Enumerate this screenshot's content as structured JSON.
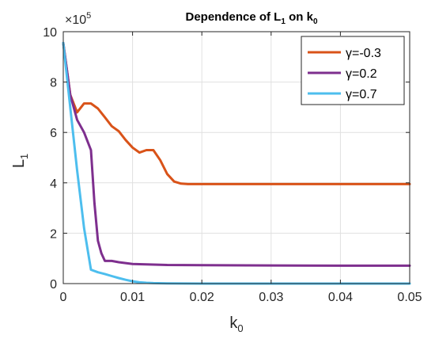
{
  "chart_data": {
    "type": "line",
    "title": "Dependence of L",
    "title_sub1": "1",
    "title_mid": " on k",
    "title_sub2": "0",
    "xlabel": "k",
    "xlabel_sub": "0",
    "ylabel": "L",
    "ylabel_sub": "1",
    "y_exponent_base": "×10",
    "y_exponent_power": "5",
    "xlim": [
      0,
      0.05
    ],
    "ylim": [
      0,
      10
    ],
    "xticks": [
      0,
      0.01,
      0.02,
      0.03,
      0.04,
      0.05
    ],
    "xtick_labels": [
      "0",
      "0.01",
      "0.02",
      "0.03",
      "0.04",
      "0.05"
    ],
    "yticks": [
      0,
      2,
      4,
      6,
      8,
      10
    ],
    "ytick_labels": [
      "0",
      "2",
      "4",
      "6",
      "8",
      "10"
    ],
    "grid": true,
    "legend_position": "top-right",
    "series": [
      {
        "name": "γ=-0.3",
        "color": "#D95319",
        "x": [
          0,
          0.001,
          0.002,
          0.003,
          0.004,
          0.005,
          0.006,
          0.007,
          0.008,
          0.009,
          0.01,
          0.011,
          0.012,
          0.013,
          0.014,
          0.015,
          0.016,
          0.017,
          0.018,
          0.02,
          0.03,
          0.04,
          0.05
        ],
        "y": [
          9.55,
          7.5,
          6.8,
          7.15,
          7.15,
          6.95,
          6.6,
          6.25,
          6.05,
          5.7,
          5.4,
          5.2,
          5.3,
          5.3,
          4.9,
          4.35,
          4.05,
          3.97,
          3.95,
          3.95,
          3.95,
          3.95,
          3.95
        ]
      },
      {
        "name": "γ=0.2",
        "color": "#7E2F8E",
        "x": [
          0,
          0.001,
          0.002,
          0.003,
          0.004,
          0.0045,
          0.005,
          0.0055,
          0.006,
          0.007,
          0.008,
          0.01,
          0.015,
          0.02,
          0.03,
          0.04,
          0.05
        ],
        "y": [
          9.55,
          7.5,
          6.5,
          6.0,
          5.3,
          3.2,
          1.7,
          1.2,
          0.9,
          0.9,
          0.85,
          0.78,
          0.74,
          0.73,
          0.72,
          0.71,
          0.71
        ]
      },
      {
        "name": "γ=0.7",
        "color": "#4DBEEE",
        "x": [
          0,
          0.001,
          0.002,
          0.003,
          0.004,
          0.005,
          0.006,
          0.007,
          0.008,
          0.009,
          0.01,
          0.011,
          0.012,
          0.013,
          0.015,
          0.02,
          0.03,
          0.04,
          0.05
        ],
        "y": [
          9.55,
          7.0,
          4.5,
          2.2,
          0.55,
          0.45,
          0.38,
          0.3,
          0.22,
          0.15,
          0.09,
          0.05,
          0.03,
          0.02,
          0.01,
          0.0,
          0.0,
          0.0,
          0.0
        ]
      }
    ]
  }
}
